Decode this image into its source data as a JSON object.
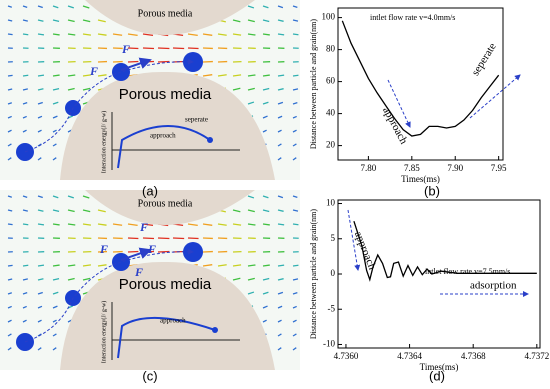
{
  "figure": {
    "panel_labels": [
      "(a)",
      "(b)",
      "(c)",
      "(d)"
    ]
  },
  "diagrams": [
    {
      "top_label": "Porous media",
      "bottom_label": "Porous media",
      "forces": [
        "F",
        "F"
      ],
      "inset_ylabel": "Interaction energy(J/ g-w)",
      "inset_labels": [
        "approach",
        "seperate"
      ]
    },
    {
      "top_label": "Porous media",
      "bottom_label": "Porous media",
      "forces": [
        "F",
        "F",
        "F",
        "F"
      ],
      "inset_ylabel": "Interaction energy(J/ g-w)",
      "inset_labels": [
        "approach"
      ]
    }
  ],
  "chart_data": [
    {
      "type": "line",
      "xlabel": "Times(ms)",
      "ylabel": "Distance between particle and grain(nm)",
      "annotations": [
        "intlet flow rate v=4.0mm/s",
        "approach",
        "seperate"
      ],
      "color": "#000000",
      "x": [
        7.77,
        7.78,
        7.79,
        7.8,
        7.81,
        7.82,
        7.83,
        7.84,
        7.85,
        7.86,
        7.87,
        7.88,
        7.89,
        7.9,
        7.91,
        7.92,
        7.93,
        7.94,
        7.95
      ],
      "values": [
        98,
        84,
        73,
        62,
        53,
        45,
        37,
        30,
        26,
        27,
        32,
        32,
        31,
        32,
        36,
        42,
        50,
        57,
        64
      ],
      "xlim": [
        7.765,
        7.955
      ],
      "xticks": [
        {
          "value": 7.8,
          "label": "7.80"
        },
        7.85,
        {
          "value": 7.9,
          "label": "7.90"
        },
        7.95
      ],
      "ylim": [
        11,
        106
      ],
      "yticks": [
        20,
        40,
        60,
        80,
        100
      ]
    },
    {
      "type": "line",
      "xlabel": "Times(ms)",
      "ylabel": "Distance between particle and grain(nm)",
      "annotations": [
        "intlet flow rate v=7.5mm/s",
        "approach",
        "adsorption"
      ],
      "color": "#000000",
      "x": [
        4.73605,
        4.7361,
        4.73613,
        4.73615,
        4.73617,
        4.7362,
        4.73623,
        4.73626,
        4.73628,
        4.7363,
        4.73633,
        4.73636,
        4.73639,
        4.73642,
        4.73645,
        4.73648,
        4.73651,
        4.73654,
        4.7366,
        4.7367,
        4.7372
      ],
      "values": [
        7.5,
        4,
        0.5,
        -0.8,
        1,
        2.7,
        1.5,
        -0.5,
        -0.4,
        1.5,
        1.7,
        -0.3,
        1.2,
        -0.2,
        1,
        -0.1,
        0.7,
        0,
        0.4,
        0.1,
        0.1
      ],
      "xlim": [
        4.73595,
        4.73722
      ],
      "xticks": [
        {
          "value": 4.736,
          "label": "4.7360"
        },
        {
          "value": 4.7364,
          "label": "4.7364"
        },
        {
          "value": 4.7368,
          "label": "4.7368"
        },
        {
          "value": 4.7372,
          "label": "4.7372"
        }
      ],
      "ylim": [
        -10.5,
        10.5
      ],
      "yticks": [
        -10,
        -5,
        0,
        5,
        10
      ]
    }
  ]
}
